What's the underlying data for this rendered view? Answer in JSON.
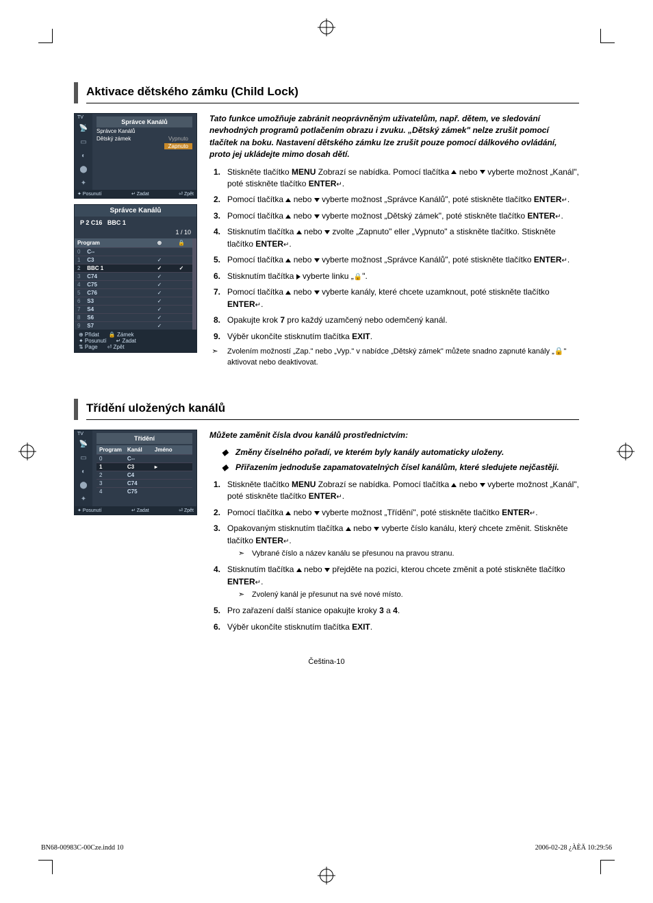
{
  "section1": {
    "heading": "Aktivace dětského zámku (Child Lock)",
    "intro": "Tato funkce umožňuje zabránit neoprávněným uživatelům, např. dětem, ve sledování nevhodných programů potlačením obrazu i zvuku. „Dětský zámek\" nelze zrušit pomocí tlačítek na boku. Nastavení dětského zámku lze zrušit pouze pomocí dálkového ovládání, proto jej ukládejte mimo dosah dětí.",
    "steps": [
      {
        "n": "1.",
        "t": "Stiskněte tlačítko MENU Zobrazí se nabídka. Pomocí tlačítka ▲ nebo ▼ vyberte možnost „Kanál\", poté stiskněte tlačítko ENTER↵."
      },
      {
        "n": "2.",
        "t": "Pomocí tlačítka ▲ nebo ▼ vyberte možnost „Správce Kanálů\", poté stiskněte tlačítko ENTER↵."
      },
      {
        "n": "3.",
        "t": "Pomocí tlačítka ▲ nebo ▼ vyberte možnost „Dětský zámek\", poté stiskněte tlačítko ENTER↵."
      },
      {
        "n": "4.",
        "t": "Stisknutím tlačítka ▲ nebo ▼ zvolte „Zapnuto\" eller „Vypnuto\" a stiskněte tlačítko. Stiskněte tlačítko ENTER↵."
      },
      {
        "n": "5.",
        "t": "Pomocí tlačítka ▲ nebo ▼ vyberte možnost „Správce Kanálů\", poté stiskněte tlačítko ENTER↵."
      },
      {
        "n": "6.",
        "t": "Stisknutím tlačítka ▶ vyberte linku „🔒\"."
      },
      {
        "n": "7.",
        "t": "Pomocí tlačítka ▲ nebo ▼ vyberte kanály, které chcete uzamknout, poté stiskněte tlačítko ENTER↵."
      },
      {
        "n": "8.",
        "t": "Opakujte krok 7 pro každý uzamčený nebo odemčený kanál."
      },
      {
        "n": "9.",
        "t": "Výběr ukončíte stisknutím tlačítka EXIT."
      }
    ],
    "note": "Zvolením možností „Zap.\" nebo „Vyp.\" v nabídce „Dětský zámek\" můžete snadno zapnuté kanály „🔒\" aktivovat nebo deaktivovat.",
    "osd1": {
      "tv": "TV",
      "title": "Správce Kanálů",
      "rows": [
        {
          "label": "Správce Kanálů",
          "val": ""
        },
        {
          "label": "Dětský zámek",
          "opts": {
            "a": "Vypnuto",
            "b": "Zapnuto"
          }
        }
      ],
      "foot": {
        "a": "✦ Posunutí",
        "b": "↵ Zadat",
        "c": "⏎ Zpět"
      }
    },
    "osd2": {
      "title": "Správce Kanálů",
      "chan_label": "P 2   C16",
      "chan_name": "BBC 1",
      "page": "1 / 10",
      "th": {
        "a": "Program",
        "b": "⊕",
        "c": "🔒"
      },
      "rows": [
        {
          "n": "0",
          "c": "C--",
          "add": "",
          "lock": ""
        },
        {
          "n": "1",
          "c": "C3",
          "add": "✓",
          "lock": ""
        },
        {
          "n": "2",
          "c": "BBC 1",
          "add": "✓",
          "lock": "✓",
          "active": true
        },
        {
          "n": "3",
          "c": "C74",
          "add": "✓",
          "lock": ""
        },
        {
          "n": "4",
          "c": "C75",
          "add": "✓",
          "lock": ""
        },
        {
          "n": "5",
          "c": "C76",
          "add": "✓",
          "lock": ""
        },
        {
          "n": "6",
          "c": "S3",
          "add": "✓",
          "lock": ""
        },
        {
          "n": "7",
          "c": "S4",
          "add": "✓",
          "lock": ""
        },
        {
          "n": "8",
          "c": "S6",
          "add": "✓",
          "lock": ""
        },
        {
          "n": "9",
          "c": "S7",
          "add": "✓",
          "lock": ""
        }
      ],
      "foot1": {
        "a": "⊕ Přidat",
        "b": "🔒 Zámek"
      },
      "foot2": {
        "a": "✦ Posunutí",
        "b": "↵ Zadat"
      },
      "foot3": {
        "a": "⇅ Page",
        "b": "⏎ Zpět"
      }
    }
  },
  "section2": {
    "heading": "Třídění uložených kanálů",
    "intro": "Můžete zaměnit čísla dvou kanálů prostřednictvím:",
    "bullets": [
      "Změny číselného pořadí, ve kterém byly kanály automaticky uloženy.",
      "Přiřazením jednoduše zapamatovatelných čísel kanálům, které sledujete nejčastěji."
    ],
    "steps": [
      {
        "n": "1.",
        "t": "Stiskněte tlačítko MENU Zobrazí se nabídka. Pomocí tlačítka ▲ nebo ▼ vyberte možnost „Kanál\", poté stiskněte tlačítko ENTER↵."
      },
      {
        "n": "2.",
        "t": "Pomocí tlačítka ▲ nebo ▼ vyberte možnost „Třídění\", poté stiskněte tlačítko ENTER↵."
      },
      {
        "n": "3.",
        "t": "Opakovaným stisknutím tlačítka ▲ nebo ▼ vyberte číslo kanálu, který chcete změnit. Stiskněte tlačítko ENTER↵.",
        "sub": "Vybrané číslo a název kanálu se přesunou na pravou stranu."
      },
      {
        "n": "4.",
        "t": "Stisknutím tlačítka ▲ nebo ▼ přejděte na pozici, kterou chcete změnit a poté stiskněte tlačítko ENTER↵.",
        "sub": "Zvolený kanál je přesunut na své nové místo."
      },
      {
        "n": "5.",
        "t": "Pro zařazení další stanice opakujte kroky 3 a 4."
      },
      {
        "n": "6.",
        "t": "Výběr ukončíte stisknutím tlačítka EXIT."
      }
    ],
    "osd": {
      "tv": "TV",
      "title": "Třídění",
      "th": {
        "a": "Program",
        "b": "Kanál",
        "c": "Jméno"
      },
      "rows": [
        {
          "n": "0",
          "c": "C--"
        },
        {
          "n": "1",
          "c": "C3",
          "active": true
        },
        {
          "n": "2",
          "c": "C4"
        },
        {
          "n": "3",
          "c": "C74"
        },
        {
          "n": "4",
          "c": "C75"
        }
      ],
      "foot": {
        "a": "✦ Posunutí",
        "b": "↵ Zadat",
        "c": "⏎ Zpět"
      }
    }
  },
  "page_num": "Čeština-10",
  "footer": {
    "left": "BN68-00983C-00Cze.indd   10",
    "right": "2006-02-28   ¿ÀÈÄ 10:29:56"
  },
  "arrow_glyph": "➣",
  "diamond_glyph": "◆"
}
